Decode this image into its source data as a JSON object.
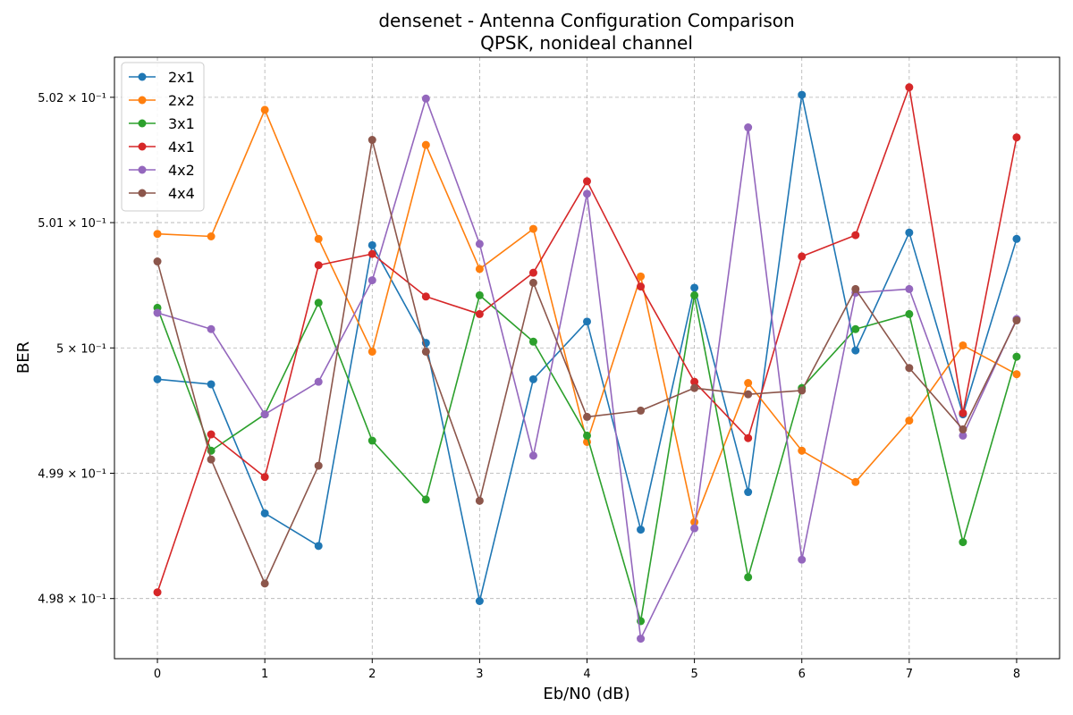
{
  "chart_data": {
    "type": "line",
    "title": "densenet - Antenna Configuration Comparison",
    "subtitle": "QPSK, nonideal channel",
    "xlabel": "Eb/N0 (dB)",
    "ylabel": "BER",
    "xlim": [
      -0.4,
      8.4
    ],
    "ylim": [
      0.49752,
      0.50232
    ],
    "grid": true,
    "legend_position": "top-left",
    "x_ticks": [
      {
        "value": 0,
        "label": "0"
      },
      {
        "value": 1,
        "label": "1"
      },
      {
        "value": 2,
        "label": "2"
      },
      {
        "value": 3,
        "label": "3"
      },
      {
        "value": 4,
        "label": "4"
      },
      {
        "value": 5,
        "label": "5"
      },
      {
        "value": 6,
        "label": "6"
      },
      {
        "value": 7,
        "label": "7"
      },
      {
        "value": 8,
        "label": "8"
      }
    ],
    "y_ticks": [
      {
        "value": 0.498,
        "label": "4.98 × 10⁻¹"
      },
      {
        "value": 0.499,
        "label": "4.99 × 10⁻¹"
      },
      {
        "value": 0.5,
        "label": "5 × 10⁻¹"
      },
      {
        "value": 0.501,
        "label": "5.01 × 10⁻¹"
      },
      {
        "value": 0.502,
        "label": "5.02 × 10⁻¹"
      }
    ],
    "x": [
      0,
      0.5,
      1,
      1.5,
      2,
      2.5,
      3,
      3.5,
      4,
      4.5,
      5,
      5.5,
      6,
      6.5,
      7,
      7.5,
      8
    ],
    "series": [
      {
        "name": "2x1",
        "color": "#1f77b4",
        "values": [
          0.49975,
          0.49971,
          0.49868,
          0.49842,
          0.50082,
          0.50004,
          0.49798,
          0.49975,
          0.50021,
          0.49855,
          0.50048,
          0.49885,
          0.50202,
          0.49998,
          0.50092,
          0.49947,
          0.50087
        ]
      },
      {
        "name": "2x2",
        "color": "#ff7f0e",
        "values": [
          0.50091,
          0.50089,
          0.5019,
          0.50087,
          0.49997,
          0.50162,
          0.50063,
          0.50095,
          0.49925,
          0.50057,
          0.49861,
          0.49972,
          0.49918,
          0.49893,
          0.49942,
          0.50002,
          0.49979
        ]
      },
      {
        "name": "3x1",
        "color": "#2ca02c",
        "values": [
          0.50032,
          0.49918,
          0.49947,
          0.50036,
          0.49926,
          0.49879,
          0.50042,
          0.50005,
          0.4993,
          0.49782,
          0.50042,
          0.49817,
          0.49968,
          0.50015,
          0.50027,
          0.49845,
          0.49993
        ]
      },
      {
        "name": "4x1",
        "color": "#d62728",
        "values": [
          0.49805,
          0.49931,
          0.49897,
          0.50066,
          0.50075,
          0.50041,
          0.50027,
          0.5006,
          0.50133,
          0.50049,
          0.49973,
          0.49928,
          0.50073,
          0.5009,
          0.50208,
          0.49948,
          0.50168
        ]
      },
      {
        "name": "4x2",
        "color": "#9467bd",
        "values": [
          0.50028,
          0.50015,
          0.49947,
          0.49973,
          0.50054,
          0.50199,
          0.50083,
          0.49914,
          0.50123,
          0.49768,
          0.49856,
          0.50176,
          0.49831,
          0.50044,
          0.50047,
          0.4993,
          0.50023
        ]
      },
      {
        "name": "4x4",
        "color": "#8c564b",
        "values": [
          0.50069,
          0.49911,
          0.49812,
          0.49906,
          0.50166,
          0.49997,
          0.49878,
          0.50052,
          0.49945,
          0.4995,
          0.49968,
          0.49963,
          0.49966,
          0.50047,
          0.49984,
          0.49935,
          0.50022
        ]
      }
    ]
  }
}
